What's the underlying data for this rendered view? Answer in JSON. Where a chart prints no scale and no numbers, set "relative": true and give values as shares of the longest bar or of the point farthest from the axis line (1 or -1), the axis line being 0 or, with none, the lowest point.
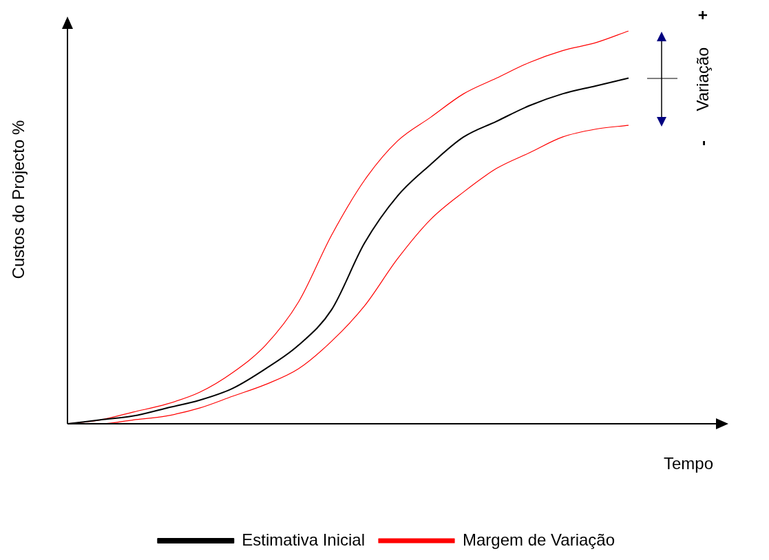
{
  "chart_data": {
    "type": "line",
    "relative": true,
    "xlabel": "Tempo",
    "ylabel": "Custos do Projecto %",
    "categories": [
      null,
      null,
      null,
      null,
      null,
      null,
      null,
      null,
      null,
      null,
      null,
      null,
      null,
      null,
      null,
      null,
      null,
      null
    ],
    "series": [
      {
        "name": "Estimativa Inicial",
        "color": "#000000",
        "values": [
          0,
          0.01,
          0.02,
          0.04,
          0.06,
          0.09,
          0.14,
          0.2,
          0.29,
          0.46,
          0.58,
          0.66,
          0.73,
          0.77,
          0.81,
          0.84,
          0.86,
          0.88
        ]
      },
      {
        "name": "Margem de Variação",
        "color": "#ff0000",
        "values": [
          0,
          0.01,
          0.03,
          0.05,
          0.08,
          0.13,
          0.2,
          0.31,
          0.48,
          0.62,
          0.72,
          0.78,
          0.84,
          0.88,
          0.92,
          0.95,
          0.97,
          1
        ]
      },
      {
        "color": "#ff0000",
        "values": [
          0,
          0,
          0.01,
          0.02,
          0.04,
          0.07,
          0.1,
          0.14,
          0.21,
          0.3,
          0.42,
          0.52,
          0.59,
          0.65,
          0.69,
          0.73,
          0.75,
          0.76
        ]
      }
    ],
    "annotations": [
      "+",
      "Variação",
      "-"
    ],
    "legend": "bottom right",
    "grid": false,
    "marker": "none",
    "line_style": "solid"
  }
}
